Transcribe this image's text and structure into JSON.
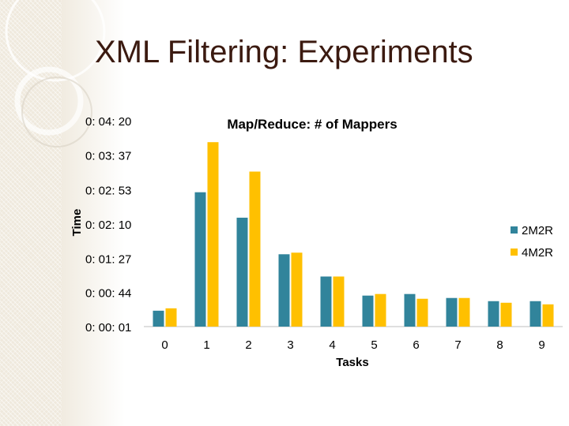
{
  "slide": {
    "title": "XML Filtering: Experiments"
  },
  "chart_data": {
    "type": "bar",
    "title": "Map/Reduce: # of Mappers",
    "xlabel": "Tasks",
    "ylabel": "Time",
    "categories": [
      "0",
      "1",
      "2",
      "3",
      "4",
      "5",
      "6",
      "7",
      "8",
      "9"
    ],
    "y_unit": "seconds",
    "ylim": [
      1,
      260
    ],
    "yticks": [
      {
        "value": 1,
        "label": "0: 00: 01"
      },
      {
        "value": 44,
        "label": "0: 00: 44"
      },
      {
        "value": 87,
        "label": "0: 01: 27"
      },
      {
        "value": 130,
        "label": "0: 02: 10"
      },
      {
        "value": 173,
        "label": "0: 02: 53"
      },
      {
        "value": 217,
        "label": "0: 03: 37"
      },
      {
        "value": 260,
        "label": "0: 04: 20"
      }
    ],
    "series": [
      {
        "name": "2M2R",
        "color": "#31849b",
        "values": [
          21,
          170,
          138,
          92,
          64,
          40,
          42,
          37,
          33,
          33
        ]
      },
      {
        "name": "4M2R",
        "color": "#ffc000",
        "values": [
          24,
          233,
          196,
          94,
          64,
          42,
          36,
          37,
          31,
          29
        ]
      }
    ],
    "legend": "right",
    "grid": false
  }
}
